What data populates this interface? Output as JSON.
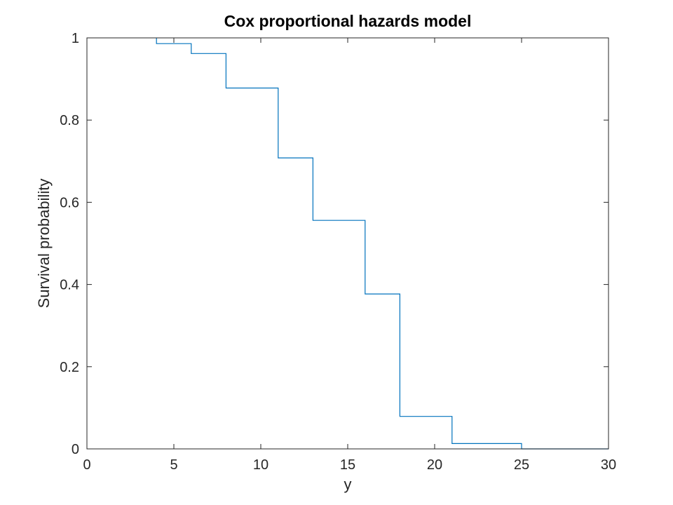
{
  "chart_data": {
    "type": "line",
    "style": "stairs",
    "title": "Cox proportional hazards model",
    "xlabel": "y",
    "ylabel": "Survival probability",
    "xlim": [
      0,
      30
    ],
    "ylim": [
      0,
      1
    ],
    "xticks": [
      0,
      5,
      10,
      15,
      20,
      25,
      30
    ],
    "yticks": [
      0,
      0.2,
      0.4,
      0.6,
      0.8,
      1
    ],
    "xtick_labels": [
      "0",
      "5",
      "10",
      "15",
      "20",
      "25",
      "30"
    ],
    "ytick_labels": [
      "0",
      "0.2",
      "0.4",
      "0.6",
      "0.8",
      "1"
    ],
    "grid": false,
    "line_color": "#0072BD",
    "axis_color": "#262626",
    "series": [
      {
        "x": [
          4,
          4,
          6,
          6,
          8,
          8,
          11,
          11,
          13,
          13,
          16,
          16,
          18,
          18,
          21,
          21,
          25,
          25,
          30
        ],
        "y": [
          1,
          0.986,
          0.986,
          0.962,
          0.962,
          0.878,
          0.878,
          0.708,
          0.708,
          0.556,
          0.556,
          0.377,
          0.377,
          0.079,
          0.079,
          0.013,
          0.013,
          0,
          0
        ]
      }
    ]
  }
}
